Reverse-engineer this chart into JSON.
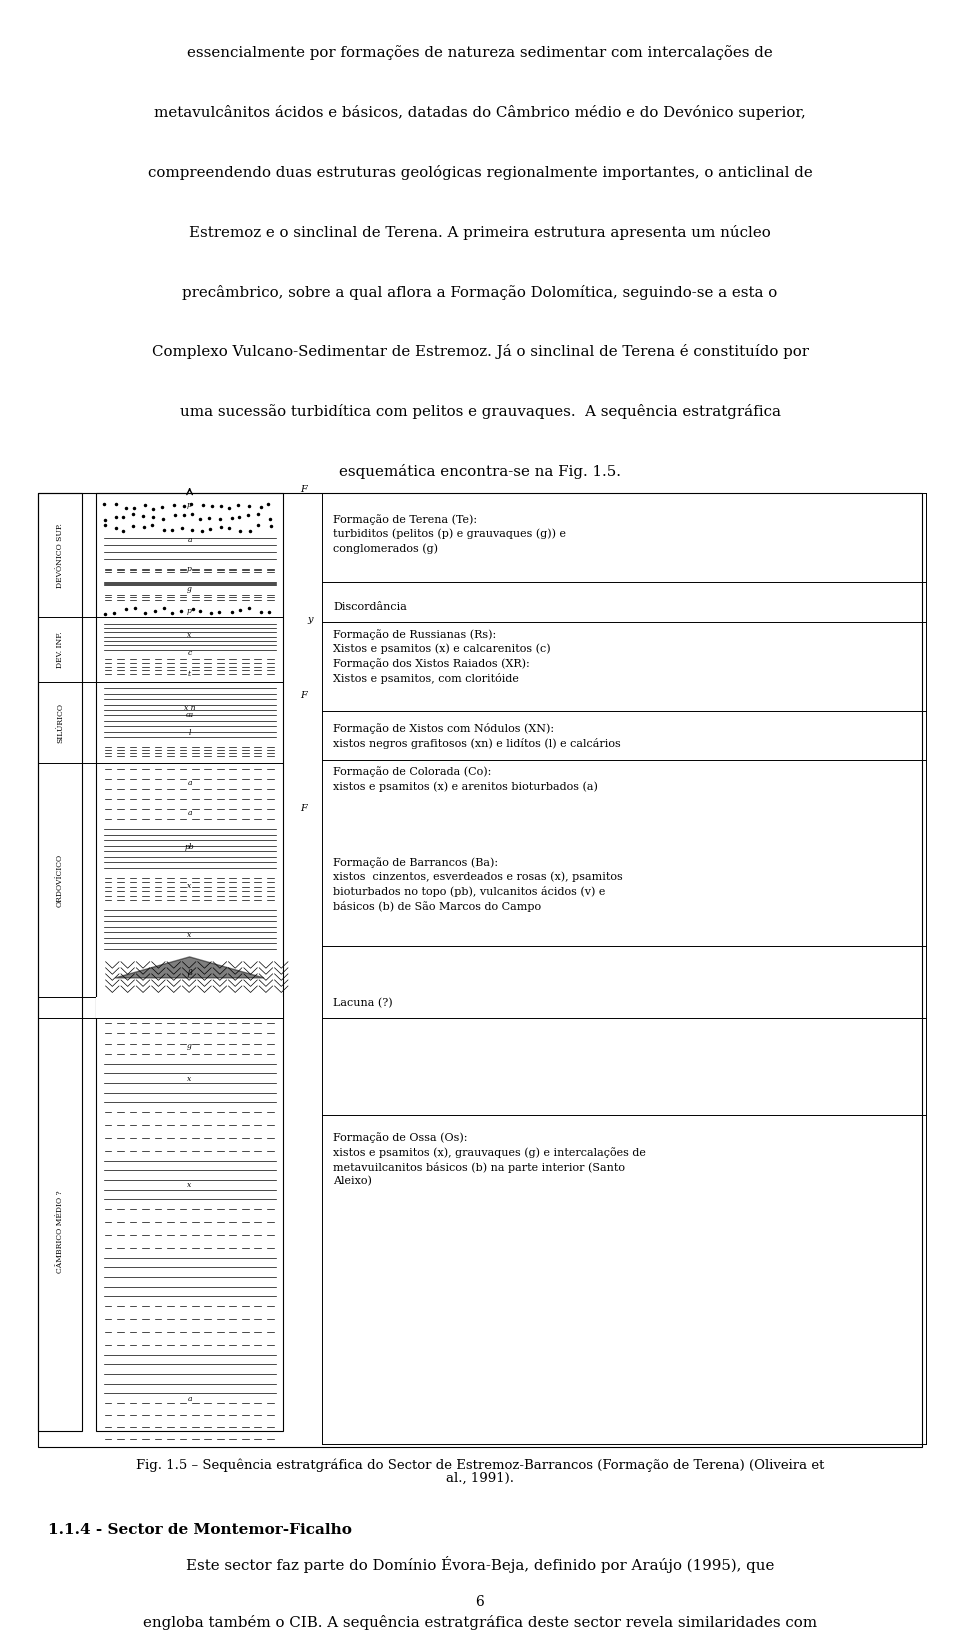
{
  "bg_color": "#ffffff",
  "page_width": 9.6,
  "page_height": 16.17,
  "fig_caption_line1": "Fig. 1.5 – Sequência estratgráfica do Sector de Estremoz-Barrancos (Formação de Terena) (Oliveira et",
  "fig_caption_line2": "al., 1991).",
  "section_title": "1.1.4 - Sector de Montemor-Ficalho",
  "page_number": "6",
  "top_lines": [
    "essencialmente por formações de natureza sedimentar com intercalações de",
    "metavulcânitos ácidos e básicos, datadas do Câmbrico médio e do Devónico superior,",
    "compreendendo duas estruturas geológicas regionalmente importantes, o anticlinal de",
    "Estremoz e o sinclinal de Terena. A primeira estrutura apresenta um núcleo",
    "precâmbrico, sobre a qual aflora a Formação Dolomítica, seguindo-se a esta o",
    "Complexo Vulcano-Sedimentar de Estremoz. Já o sinclinal de Terena é constituído por",
    "uma sucessão turbidítica com pelitos e grauvaques.  A sequência estratgráfica",
    "esquemática encontra-se na Fig. 1.5."
  ],
  "bottom_lines": [
    "Este sector faz parte do Domínio Évora-Beja, definido por Araújo (1995), que",
    "engloba também o CIB. A sequência estratgráfica deste sector revela similaridades com"
  ]
}
